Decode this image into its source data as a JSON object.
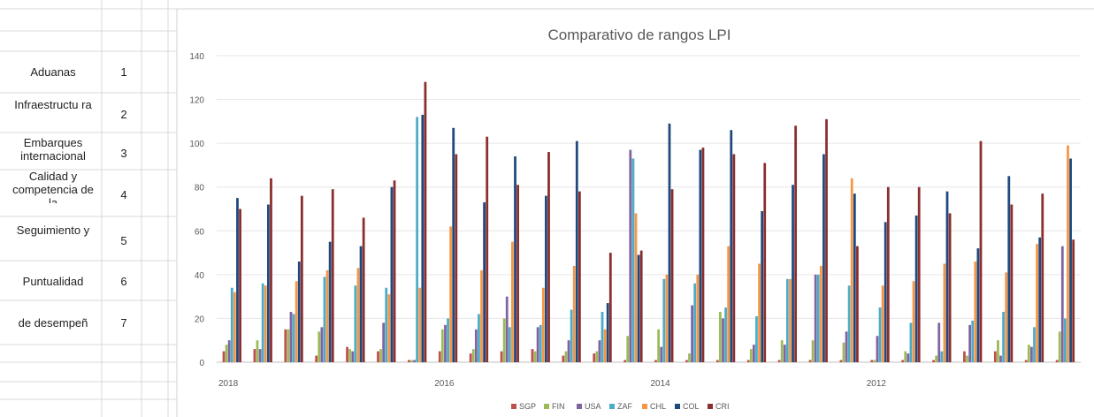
{
  "table": {
    "rows": [
      {
        "label": "Aduanas",
        "num": "1"
      },
      {
        "label": "Infraestructu ra",
        "num": "2"
      },
      {
        "label": "Embarques internacional",
        "num": "3"
      },
      {
        "label": "Calidad y competencia de la",
        "num": "4"
      },
      {
        "label": "Seguimiento y",
        "num": "5"
      },
      {
        "label": "Puntualidad",
        "num": "6"
      },
      {
        "label": "de desempeñ",
        "num": "7"
      }
    ]
  },
  "chart_data": {
    "type": "bar",
    "title": "Comparativo de rangos LPI",
    "ylim": [
      0,
      140
    ],
    "yticks": [
      0,
      20,
      40,
      60,
      80,
      100,
      120,
      140
    ],
    "x_tick_labels": [
      {
        "label": "2018",
        "group": 0
      },
      {
        "label": "2016",
        "group": 7
      },
      {
        "label": "2014",
        "group": 14
      },
      {
        "label": "2012",
        "group": 21
      }
    ],
    "grid": true,
    "legend_position": "bottom",
    "series": [
      {
        "name": "SGP",
        "color": "#c0504d",
        "values": [
          5,
          6,
          15,
          3,
          7,
          5,
          1,
          5,
          4,
          5,
          6,
          3,
          4,
          1,
          1,
          1,
          1,
          1,
          1,
          1,
          1,
          1,
          1,
          1,
          5,
          5,
          1,
          1
        ]
      },
      {
        "name": "FIN",
        "color": "#9bbb59",
        "values": [
          8,
          10,
          15,
          14,
          6,
          6,
          1,
          15,
          6,
          20,
          5,
          5,
          5,
          12,
          15,
          4,
          23,
          6,
          10,
          10,
          9,
          1,
          5,
          3,
          3,
          10,
          8,
          14
        ]
      },
      {
        "name": "USA",
        "color": "#8064a2",
        "values": [
          10,
          6,
          23,
          16,
          5,
          18,
          1,
          17,
          15,
          30,
          16,
          10,
          10,
          97,
          7,
          26,
          20,
          8,
          8,
          40,
          14,
          12,
          4,
          18,
          17,
          3,
          7,
          53
        ]
      },
      {
        "name": "ZAF",
        "color": "#4bacc6",
        "values": [
          34,
          36,
          22,
          39,
          35,
          34,
          112,
          20,
          22,
          16,
          17,
          24,
          23,
          93,
          38,
          36,
          25,
          21,
          38,
          40,
          35,
          25,
          18,
          5,
          19,
          23,
          16,
          20
        ]
      },
      {
        "name": "CHL",
        "color": "#f79646",
        "values": [
          32,
          35,
          37,
          42,
          43,
          31,
          34,
          62,
          42,
          55,
          34,
          44,
          15,
          68,
          40,
          40,
          53,
          45,
          38,
          44,
          84,
          35,
          37,
          45,
          46,
          41,
          54,
          99
        ]
      },
      {
        "name": "COL",
        "color": "#1f497d",
        "values": [
          75,
          72,
          46,
          55,
          53,
          80,
          113,
          107,
          73,
          94,
          76,
          101,
          27,
          49,
          109,
          97,
          106,
          69,
          81,
          95,
          77,
          64,
          67,
          78,
          52,
          85,
          57,
          93
        ]
      },
      {
        "name": "CRI",
        "color": "#8b2e2e",
        "values": [
          70,
          84,
          76,
          79,
          66,
          83,
          128,
          95,
          103,
          81,
          96,
          78,
          50,
          51,
          79,
          98,
          95,
          91,
          108,
          111,
          53,
          80,
          80,
          68,
          101,
          72,
          77,
          56
        ]
      }
    ],
    "group_count": 28
  }
}
